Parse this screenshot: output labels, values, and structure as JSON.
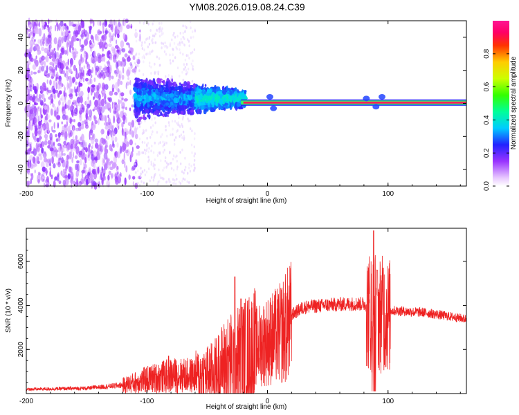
{
  "title": "YM08.2026.019.08.24.C39",
  "chart_data": [
    {
      "type": "heatmap",
      "xlabel": "Height of straight line (km)",
      "ylabel": "Frequency (Hz)",
      "xlim": [
        -200,
        165
      ],
      "ylim": [
        -50,
        50
      ],
      "xticks": [
        -200,
        -100,
        0,
        100
      ],
      "yticks": [
        -40,
        -20,
        0,
        20,
        40
      ],
      "colorbar": {
        "label": "Normalized spectral amplitude",
        "range": [
          0,
          1
        ],
        "ticks": [
          0.0,
          0.2,
          0.4,
          0.6,
          0.8
        ],
        "tick_labels": [
          "0.0",
          "0.2",
          "0.4",
          "0.6",
          "0.8"
        ]
      },
      "regions": [
        {
          "x_from": -200,
          "x_to": -110,
          "description_amp": 0.15,
          "freq_spread": 50
        },
        {
          "x_from": -110,
          "x_to": -20,
          "description_amp": 0.35,
          "freq_spread": 12
        },
        {
          "x_from": -20,
          "x_to": 165,
          "description_amp": 1.0,
          "freq_spread": 1
        }
      ]
    },
    {
      "type": "line",
      "xlabel": "Height of straight line (km)",
      "ylabel": "SNR (10 * v/v)",
      "xlim": [
        -200,
        165
      ],
      "ylim": [
        0,
        7500
      ],
      "xticks": [
        -200,
        -100,
        0,
        100
      ],
      "yticks": [
        2000,
        4000,
        6000
      ],
      "color": "#ee2222",
      "envelope": [
        {
          "x": -200,
          "y": 200
        },
        {
          "x": -150,
          "y": 250
        },
        {
          "x": -120,
          "y": 400
        },
        {
          "x": -100,
          "y": 700
        },
        {
          "x": -80,
          "y": 900
        },
        {
          "x": -60,
          "y": 900
        },
        {
          "x": -45,
          "y": 1100
        },
        {
          "x": -35,
          "y": 1600
        },
        {
          "x": -20,
          "y": 2000
        },
        {
          "x": 0,
          "y": 2600
        },
        {
          "x": 10,
          "y": 2900
        },
        {
          "x": 20,
          "y": 3600
        },
        {
          "x": 30,
          "y": 3950
        },
        {
          "x": 50,
          "y": 4050
        },
        {
          "x": 70,
          "y": 4100
        },
        {
          "x": 80,
          "y": 4100
        },
        {
          "x": 100,
          "y": 3800
        },
        {
          "x": 130,
          "y": 3700
        },
        {
          "x": 165,
          "y": 3400
        }
      ],
      "peaks": [
        {
          "x": -82,
          "y": 1700
        },
        {
          "x": -27,
          "y": 5300
        },
        {
          "x": -22,
          "y": 4300
        },
        {
          "x": 88,
          "y": 7400
        },
        {
          "x": 91,
          "y": 5600
        },
        {
          "x": 96,
          "y": 5700
        }
      ]
    }
  ]
}
